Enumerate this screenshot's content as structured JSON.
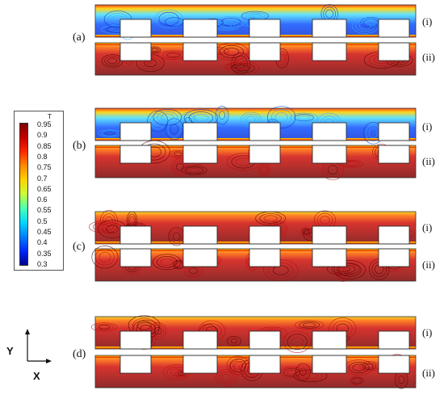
{
  "cases": [
    {
      "label": "(a)",
      "rows": [
        {
          "label": "(i)",
          "style": "cold"
        },
        {
          "label": "(ii)",
          "style": "hot"
        }
      ]
    },
    {
      "label": "(b)",
      "rows": [
        {
          "label": "(i)",
          "style": "cold"
        },
        {
          "label": "(ii)",
          "style": "hot"
        }
      ]
    },
    {
      "label": "(c)",
      "rows": [
        {
          "label": "(i)",
          "style": "hot"
        },
        {
          "label": "(ii)",
          "style": "hot"
        }
      ]
    },
    {
      "label": "(d)",
      "rows": [
        {
          "label": "(i)",
          "style": "hot"
        },
        {
          "label": "(ii)",
          "style": "hot"
        }
      ]
    }
  ],
  "colorbar": {
    "title": "T",
    "ticks": [
      "0.95",
      "0.9",
      "0.85",
      "0.8",
      "0.75",
      "0.7",
      "0.65",
      "0.6",
      "0.55",
      "0.5",
      "0.45",
      "0.4",
      "0.35",
      "0.3"
    ],
    "colors": [
      "#7f0000",
      "#c60000",
      "#ff2800",
      "#ff8c00",
      "#ffd400",
      "#c8ff37",
      "#4affb4",
      "#00d8ff",
      "#007fff",
      "#0028ff",
      "#00008f"
    ]
  },
  "axes": {
    "y_label": "Y",
    "x_label": "X"
  }
}
